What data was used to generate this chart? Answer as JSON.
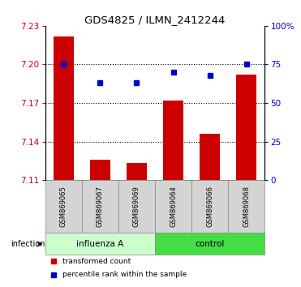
{
  "title": "GDS4825 / ILMN_2412244",
  "samples": [
    "GSM869065",
    "GSM869067",
    "GSM869069",
    "GSM869064",
    "GSM869066",
    "GSM869068"
  ],
  "red_values": [
    7.222,
    7.126,
    7.123,
    7.172,
    7.146,
    7.192
  ],
  "blue_values": [
    75,
    63,
    63,
    70,
    68,
    75
  ],
  "y_min": 7.11,
  "y_max": 7.23,
  "y_ticks": [
    7.11,
    7.14,
    7.17,
    7.2,
    7.23
  ],
  "right_y_ticks": [
    0,
    25,
    50,
    75,
    100
  ],
  "right_y_labels": [
    "0",
    "25",
    "50",
    "75",
    "100%"
  ],
  "group1_label": "influenza A",
  "group2_label": "control",
  "group_label": "infection",
  "legend_red": "transformed count",
  "legend_blue": "percentile rank within the sample",
  "bar_color": "#cc0000",
  "dot_color": "#0000cc",
  "group1_bg": "#ccffcc",
  "group2_bg": "#44dd44",
  "tick_label_color_left": "#cc0000",
  "tick_label_color_right": "#0000cc",
  "bar_width": 0.55,
  "figsize": [
    3.71,
    3.54
  ],
  "dpi": 100
}
